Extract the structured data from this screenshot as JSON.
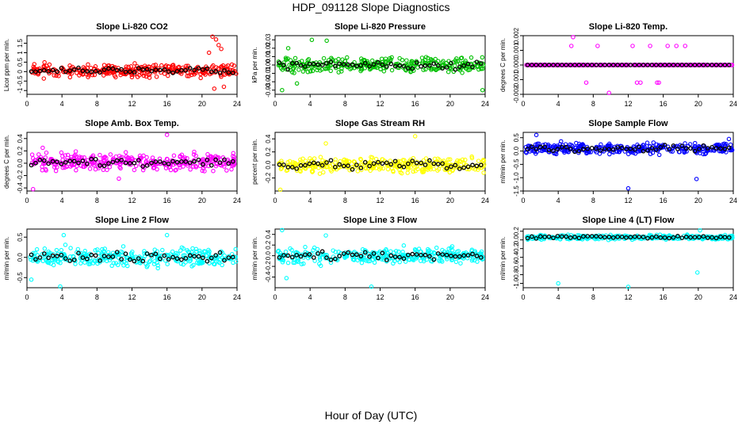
{
  "title": "HDP_091128  Slope Diagnostics",
  "xlabel": "Hour of Day (UTC)",
  "chart_data": [
    {
      "type": "scatter",
      "title": "Slope Li-820 CO2",
      "ylabel": "Licor ppm per min.",
      "xlim": [
        0,
        24
      ],
      "xticks": [
        0,
        4,
        8,
        12,
        16,
        20,
        24
      ],
      "ylim": [
        -1.2,
        1.9
      ],
      "yticks": [
        -1,
        -0.5,
        0,
        0.5,
        1,
        1.5
      ],
      "ytick_labels": [
        "-1",
        "-0.5",
        "0",
        "0.5",
        "1",
        "1.5"
      ],
      "color": "#ff0000",
      "center": 0.05,
      "spread": 0.22,
      "seed": 11,
      "outliers": [
        {
          "x": 21.2,
          "y": 1.85
        },
        {
          "x": 21.6,
          "y": 1.7
        },
        {
          "x": 21.9,
          "y": 1.4
        },
        {
          "x": 22.2,
          "y": 1.2
        },
        {
          "x": 21.4,
          "y": -0.9
        },
        {
          "x": 22.5,
          "y": -0.8
        },
        {
          "x": 20.8,
          "y": 1.0
        }
      ]
    },
    {
      "type": "scatter",
      "title": "Slope Li-820 Pressure",
      "ylabel": "kPa per min.",
      "xlim": [
        0,
        24
      ],
      "xticks": [
        0,
        4,
        8,
        12,
        16,
        20,
        24
      ],
      "ylim": [
        -0.035,
        0.035
      ],
      "yticks": [
        -0.03,
        -0.02,
        -0.01,
        0,
        0.01,
        0.02,
        0.03
      ],
      "ytick_labels": [
        "-0.03",
        "-0.02",
        "-0.01",
        "0.00",
        "0.01",
        "0.02",
        "0.03"
      ],
      "color": "#00c000",
      "center": 0.0,
      "spread": 0.006,
      "seed": 23,
      "outliers": [
        {
          "x": 0.8,
          "y": -0.03
        },
        {
          "x": 4.2,
          "y": 0.03
        },
        {
          "x": 5.9,
          "y": 0.029
        },
        {
          "x": 23.7,
          "y": -0.03
        },
        {
          "x": 2.5,
          "y": -0.022
        },
        {
          "x": 1.5,
          "y": 0.02
        }
      ]
    },
    {
      "type": "scatter",
      "title": "Slope Li-820 Temp.",
      "ylabel": "degrees C per min.",
      "xlim": [
        0,
        24
      ],
      "xticks": [
        0,
        4,
        8,
        12,
        16,
        20,
        24
      ],
      "ylim": [
        -0.002,
        0.002
      ],
      "yticks": [
        -0.002,
        -0.001,
        0,
        0.001,
        0.002
      ],
      "ytick_labels": [
        "-0.002",
        "-0.001",
        "0.000",
        "0.001",
        "0.002"
      ],
      "color": "#ff00ff",
      "center": 0.0,
      "spread": 0.0,
      "seed": 37,
      "outliers": [
        {
          "x": 5.7,
          "y": 0.0019
        },
        {
          "x": 5.5,
          "y": 0.0013
        },
        {
          "x": 8.5,
          "y": 0.0013
        },
        {
          "x": 12.5,
          "y": 0.0013
        },
        {
          "x": 14.5,
          "y": 0.0013
        },
        {
          "x": 16.5,
          "y": 0.0013
        },
        {
          "x": 17.5,
          "y": 0.0013
        },
        {
          "x": 18.5,
          "y": 0.0013
        },
        {
          "x": 7.2,
          "y": -0.0012
        },
        {
          "x": 9.8,
          "y": -0.0019
        },
        {
          "x": 13,
          "y": -0.0012
        },
        {
          "x": 13.4,
          "y": -0.0012
        },
        {
          "x": 15.3,
          "y": -0.0012
        },
        {
          "x": 15.5,
          "y": -0.0012
        }
      ]
    },
    {
      "type": "scatter",
      "title": "Slope Amb. Box Temp.",
      "ylabel": "degrees C per min.",
      "xlim": [
        0,
        24
      ],
      "xticks": [
        0,
        4,
        8,
        12,
        16,
        20,
        24
      ],
      "ylim": [
        -0.45,
        0.5
      ],
      "yticks": [
        -0.4,
        -0.2,
        0,
        0.2,
        0.4
      ],
      "ytick_labels": [
        "-0.4",
        "-0.2",
        "0.0",
        "0.2",
        "0.4"
      ],
      "color": "#ff00ff",
      "center": 0.02,
      "spread": 0.09,
      "seed": 41,
      "outliers": [
        {
          "x": 0.7,
          "y": -0.42
        },
        {
          "x": 16.0,
          "y": 0.46
        },
        {
          "x": 10.5,
          "y": -0.25
        },
        {
          "x": 1.8,
          "y": 0.25
        }
      ]
    },
    {
      "type": "scatter",
      "title": "Slope Gas Stream RH",
      "ylabel": "percent per min.",
      "xlim": [
        0,
        24
      ],
      "xticks": [
        0,
        4,
        8,
        12,
        16,
        20,
        24
      ],
      "ylim": [
        -0.4,
        0.5
      ],
      "yticks": [
        -0.2,
        0,
        0.2,
        0.4
      ],
      "ytick_labels": [
        "-0.2",
        "0.0",
        "0.2",
        "0.4"
      ],
      "color": "#ffff00",
      "center": 0.0,
      "spread": 0.08,
      "seed": 53,
      "outliers": [
        {
          "x": 16.0,
          "y": 0.44
        },
        {
          "x": 0.6,
          "y": -0.38
        },
        {
          "x": 5.8,
          "y": 0.33
        }
      ]
    },
    {
      "type": "scatter",
      "title": "Slope Sample Flow",
      "ylabel": "ml/min per min.",
      "xlim": [
        0,
        24
      ],
      "xticks": [
        0,
        4,
        8,
        12,
        16,
        20,
        24
      ],
      "ylim": [
        -1.5,
        0.7
      ],
      "yticks": [
        -1.5,
        -1,
        -0.5,
        0,
        0.5
      ],
      "ytick_labels": [
        "-1.5",
        "-1.0",
        "-0.5",
        "0.0",
        "0.5"
      ],
      "color": "#0000ff",
      "center": 0.1,
      "spread": 0.14,
      "seed": 67,
      "outliers": [
        {
          "x": 12.0,
          "y": -1.4
        },
        {
          "x": 19.8,
          "y": -1.05
        },
        {
          "x": 1.5,
          "y": 0.6
        },
        {
          "x": 23.5,
          "y": 0.45
        }
      ]
    },
    {
      "type": "scatter",
      "title": "Slope Line 2 Flow",
      "ylabel": "ml/min per min.",
      "xlim": [
        0,
        24
      ],
      "xticks": [
        0,
        4,
        8,
        12,
        16,
        20,
        24
      ],
      "ylim": [
        -0.75,
        0.7
      ],
      "yticks": [
        -0.5,
        0,
        0.5
      ],
      "ytick_labels": [
        "-0.5",
        "0.0",
        "0.5"
      ],
      "color": "#00ffff",
      "center": 0.0,
      "spread": 0.15,
      "seed": 79,
      "outliers": [
        {
          "x": 3.8,
          "y": -0.72
        },
        {
          "x": 0.5,
          "y": -0.55
        },
        {
          "x": 4.2,
          "y": 0.55
        },
        {
          "x": 16.0,
          "y": 0.55
        }
      ]
    },
    {
      "type": "scatter",
      "title": "Slope Line 3 Flow",
      "ylabel": "ml/min per min.",
      "xlim": [
        0,
        24
      ],
      "xticks": [
        0,
        4,
        8,
        12,
        16,
        20,
        24
      ],
      "ylim": [
        -0.6,
        0.5
      ],
      "yticks": [
        -0.4,
        -0.2,
        0,
        0.2,
        0.4
      ],
      "ytick_labels": [
        "-0.4",
        "-0.2",
        "0.0",
        "0.2",
        "0.4"
      ],
      "color": "#00ffff",
      "center": 0.0,
      "spread": 0.1,
      "seed": 83,
      "outliers": [
        {
          "x": 0.8,
          "y": 0.48
        },
        {
          "x": 11.0,
          "y": -0.58
        },
        {
          "x": 1.3,
          "y": -0.42
        },
        {
          "x": 5.8,
          "y": 0.38
        }
      ]
    },
    {
      "type": "scatter",
      "title": "Slope Line 4 (LT) Flow",
      "ylabel": "ml/min per min.",
      "xlim": [
        0,
        24
      ],
      "xticks": [
        0,
        4,
        8,
        12,
        16,
        20,
        24
      ],
      "ylim": [
        -1.1,
        0.25
      ],
      "yticks": [
        -1.0,
        -0.8,
        -0.6,
        -0.4,
        -0.2,
        0.0,
        0.2
      ],
      "ytick_labels": [
        "-1.0",
        "-0.8",
        "-0.6",
        "-0.4",
        "-0.2",
        "0.0",
        "0.2"
      ],
      "color": "#00ffff",
      "center": 0.06,
      "spread": 0.035,
      "seed": 97,
      "outliers": [
        {
          "x": 4.0,
          "y": -1.0
        },
        {
          "x": 12.0,
          "y": -1.08
        },
        {
          "x": 19.9,
          "y": -0.75
        },
        {
          "x": 20.2,
          "y": 0.22
        }
      ]
    }
  ]
}
